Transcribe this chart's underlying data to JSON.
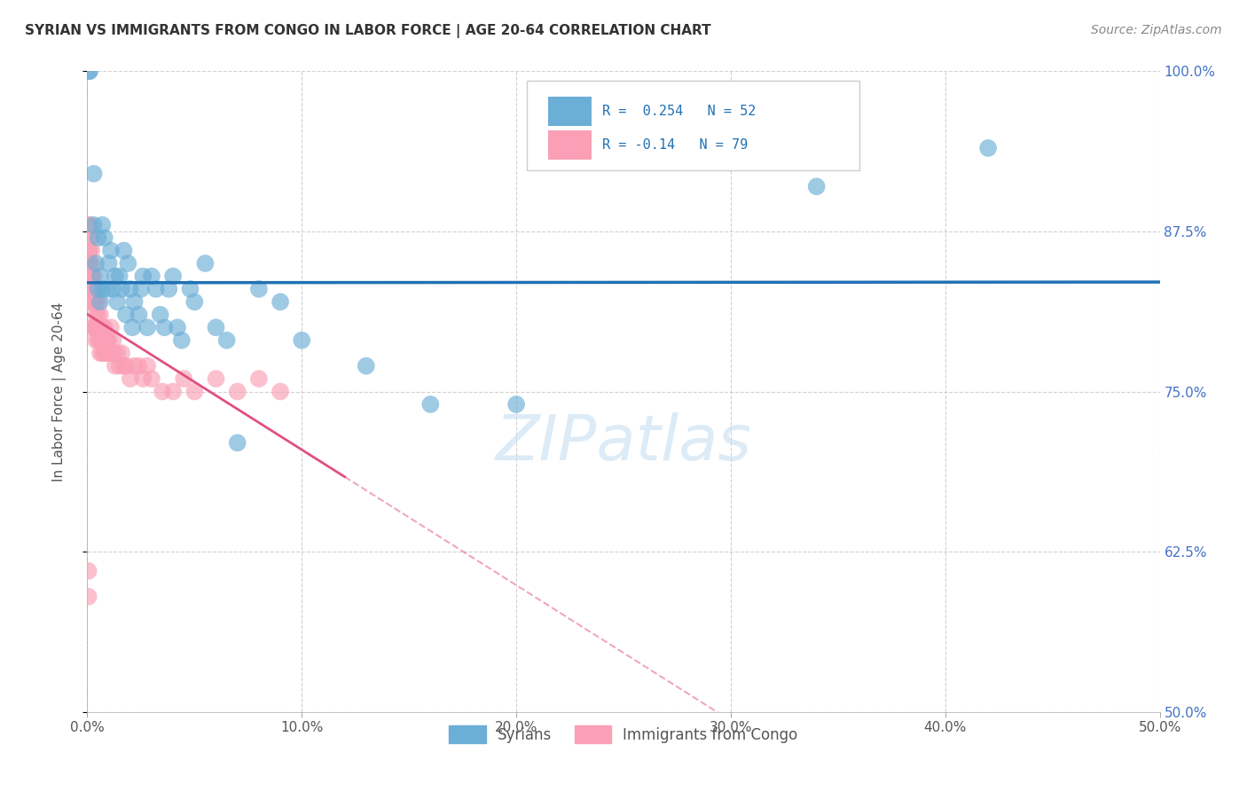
{
  "title": "SYRIAN VS IMMIGRANTS FROM CONGO IN LABOR FORCE | AGE 20-64 CORRELATION CHART",
  "source": "Source: ZipAtlas.com",
  "ylabel": "In Labor Force | Age 20-64",
  "xmin": 0.0,
  "xmax": 0.5,
  "ymin": 0.5,
  "ymax": 1.0,
  "xticks": [
    0.0,
    0.1,
    0.2,
    0.3,
    0.4,
    0.5
  ],
  "xtick_labels": [
    "0.0%",
    "10.0%",
    "20.0%",
    "30.0%",
    "40.0%",
    "50.0%"
  ],
  "yticks": [
    0.5,
    0.625,
    0.75,
    0.875,
    1.0
  ],
  "ytick_labels": [
    "50.0%",
    "62.5%",
    "75.0%",
    "87.5%",
    "100.0%"
  ],
  "syrians_R": 0.254,
  "syrians_N": 52,
  "congo_R": -0.14,
  "congo_N": 79,
  "syrians_color": "#6baed6",
  "congo_color": "#fa9fb5",
  "syrians_line_color": "#2171b5",
  "congo_line_color": "#e05080",
  "background_color": "#ffffff",
  "legend_label_syrians": "Syrians",
  "legend_label_congo": "Immigrants from Congo",
  "watermark": "ZIPatlas",
  "syrians_x": [
    0.001,
    0.001,
    0.003,
    0.003,
    0.004,
    0.005,
    0.005,
    0.006,
    0.006,
    0.007,
    0.007,
    0.008,
    0.009,
    0.01,
    0.011,
    0.012,
    0.013,
    0.014,
    0.015,
    0.016,
    0.017,
    0.018,
    0.019,
    0.02,
    0.021,
    0.022,
    0.024,
    0.025,
    0.026,
    0.028,
    0.03,
    0.032,
    0.034,
    0.036,
    0.038,
    0.04,
    0.042,
    0.044,
    0.048,
    0.05,
    0.055,
    0.06,
    0.065,
    0.07,
    0.08,
    0.09,
    0.1,
    0.13,
    0.16,
    0.2,
    0.34,
    0.42
  ],
  "syrians_y": [
    1.0,
    1.0,
    0.92,
    0.88,
    0.85,
    0.87,
    0.83,
    0.82,
    0.84,
    0.83,
    0.88,
    0.87,
    0.83,
    0.85,
    0.86,
    0.83,
    0.84,
    0.82,
    0.84,
    0.83,
    0.86,
    0.81,
    0.85,
    0.83,
    0.8,
    0.82,
    0.81,
    0.83,
    0.84,
    0.8,
    0.84,
    0.83,
    0.81,
    0.8,
    0.83,
    0.84,
    0.8,
    0.79,
    0.83,
    0.82,
    0.85,
    0.8,
    0.79,
    0.71,
    0.83,
    0.82,
    0.79,
    0.77,
    0.74,
    0.74,
    0.91,
    0.94
  ],
  "congo_x": [
    0.0005,
    0.0005,
    0.0005,
    0.0005,
    0.001,
    0.001,
    0.001,
    0.001,
    0.001,
    0.001,
    0.001,
    0.001,
    0.002,
    0.002,
    0.002,
    0.002,
    0.002,
    0.002,
    0.002,
    0.002,
    0.002,
    0.003,
    0.003,
    0.003,
    0.003,
    0.003,
    0.003,
    0.003,
    0.004,
    0.004,
    0.004,
    0.004,
    0.004,
    0.004,
    0.005,
    0.005,
    0.005,
    0.005,
    0.005,
    0.006,
    0.006,
    0.006,
    0.006,
    0.007,
    0.007,
    0.007,
    0.007,
    0.008,
    0.008,
    0.008,
    0.009,
    0.009,
    0.009,
    0.01,
    0.01,
    0.011,
    0.011,
    0.012,
    0.012,
    0.013,
    0.014,
    0.015,
    0.016,
    0.017,
    0.018,
    0.02,
    0.022,
    0.024,
    0.026,
    0.028,
    0.03,
    0.035,
    0.04,
    0.045,
    0.05,
    0.06,
    0.07,
    0.08,
    0.09
  ],
  "congo_y": [
    0.59,
    0.61,
    0.88,
    0.86,
    0.83,
    0.85,
    0.86,
    0.84,
    0.87,
    0.88,
    0.84,
    0.85,
    0.82,
    0.84,
    0.85,
    0.83,
    0.86,
    0.87,
    0.84,
    0.82,
    0.8,
    0.82,
    0.83,
    0.82,
    0.84,
    0.8,
    0.82,
    0.83,
    0.8,
    0.81,
    0.82,
    0.8,
    0.83,
    0.79,
    0.8,
    0.81,
    0.8,
    0.82,
    0.79,
    0.81,
    0.8,
    0.79,
    0.78,
    0.8,
    0.79,
    0.78,
    0.8,
    0.79,
    0.78,
    0.8,
    0.79,
    0.78,
    0.79,
    0.78,
    0.79,
    0.78,
    0.8,
    0.78,
    0.79,
    0.77,
    0.78,
    0.77,
    0.78,
    0.77,
    0.77,
    0.76,
    0.77,
    0.77,
    0.76,
    0.77,
    0.76,
    0.75,
    0.75,
    0.76,
    0.75,
    0.76,
    0.75,
    0.76,
    0.75
  ]
}
